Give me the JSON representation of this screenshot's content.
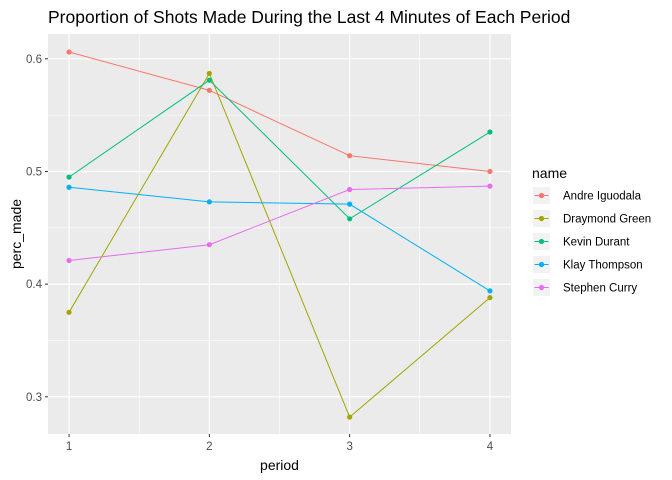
{
  "chart_data": {
    "type": "line",
    "title": "Proportion of Shots Made During the Last 4 Minutes of Each Period",
    "xlabel": "period",
    "ylabel": "perc_made",
    "x": [
      1,
      2,
      3,
      4
    ],
    "xlim": [
      0.85,
      4.15
    ],
    "ylim": [
      0.267,
      0.622
    ],
    "x_ticks": [
      "1",
      "2",
      "3",
      "4"
    ],
    "y_ticks": [
      "0.3",
      "0.4",
      "0.5",
      "0.6"
    ],
    "y_tick_values": [
      0.3,
      0.4,
      0.5,
      0.6
    ],
    "grid": true,
    "legend_title": "name",
    "legend_position": "right",
    "series": [
      {
        "name": "Andre Iguodala",
        "color": "#F8766D",
        "values": [
          0.606,
          0.572,
          0.514,
          0.5
        ]
      },
      {
        "name": "Draymond Green",
        "color": "#A3A500",
        "values": [
          0.375,
          0.587,
          0.282,
          0.388
        ]
      },
      {
        "name": "Kevin Durant",
        "color": "#00BF7D",
        "values": [
          0.495,
          0.581,
          0.458,
          0.535
        ]
      },
      {
        "name": "Klay Thompson",
        "color": "#00B0F6",
        "values": [
          0.486,
          0.473,
          0.471,
          0.394
        ]
      },
      {
        "name": "Stephen Curry",
        "color": "#E76BF3",
        "values": [
          0.421,
          0.435,
          0.484,
          0.487
        ]
      }
    ]
  }
}
